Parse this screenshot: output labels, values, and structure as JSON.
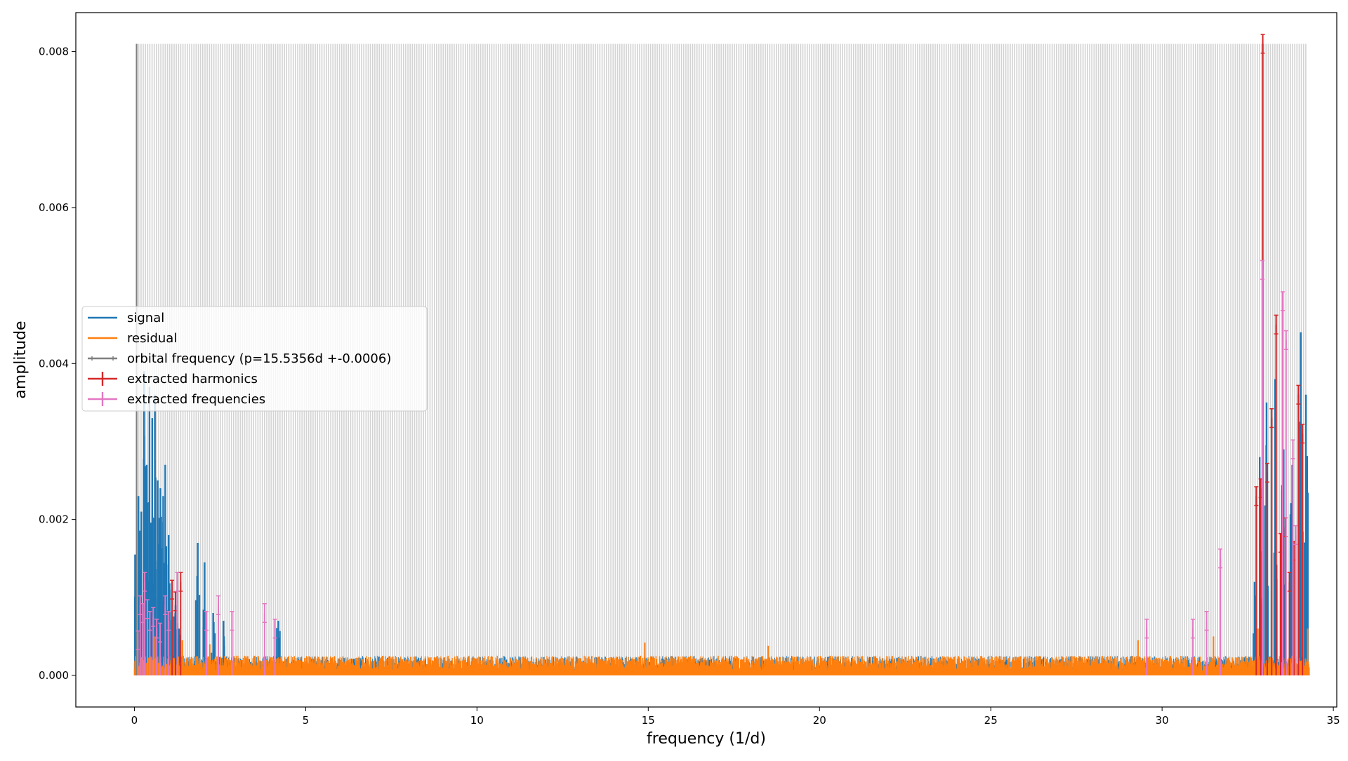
{
  "chart_data": {
    "type": "line",
    "xlabel": "frequency (1/d)",
    "ylabel": "amplitude",
    "xlim": [
      -1.71,
      35.1
    ],
    "ylim": [
      -0.000405,
      0.0085
    ],
    "x_ticks": [
      0,
      5,
      10,
      15,
      20,
      25,
      30,
      35
    ],
    "y_ticks": [
      0.0,
      0.002,
      0.004,
      0.006,
      0.008
    ],
    "x_tick_labels": [
      "0",
      "5",
      "10",
      "15",
      "20",
      "25",
      "30",
      "35"
    ],
    "y_tick_labels": [
      "0.000",
      "0.002",
      "0.004",
      "0.006",
      "0.008"
    ],
    "legend_position": "center-left",
    "grid": false,
    "colors": {
      "signal": "#1f77b4",
      "residual": "#ff7f0e",
      "orbital": "#7f7f7f",
      "harmonics": "#d62728",
      "frequencies": "#e377c2",
      "harmonic_bands": "#d3d3d3"
    },
    "orbital_frequency": {
      "label": "orbital frequency (p=15.5356d +-0.0006)",
      "x": 0.0644,
      "y": 0.0081
    },
    "harmonic_band": {
      "x_start": 0.0644,
      "x_end": 34.2,
      "spacing": 0.0644,
      "height": 0.0081
    },
    "series": [
      {
        "name": "signal",
        "description": "amplitude spectrum of the light curve",
        "peaks": [
          {
            "x": 0.02,
            "y": 0.00155
          },
          {
            "x": 0.12,
            "y": 0.0023
          },
          {
            "x": 0.2,
            "y": 0.0021
          },
          {
            "x": 0.28,
            "y": 0.0039
          },
          {
            "x": 0.36,
            "y": 0.0027
          },
          {
            "x": 0.44,
            "y": 0.0037
          },
          {
            "x": 0.52,
            "y": 0.0033
          },
          {
            "x": 0.6,
            "y": 0.0036
          },
          {
            "x": 0.68,
            "y": 0.0025
          },
          {
            "x": 0.76,
            "y": 0.0024
          },
          {
            "x": 0.84,
            "y": 0.0023
          },
          {
            "x": 0.9,
            "y": 0.0027
          },
          {
            "x": 1.0,
            "y": 0.0018
          },
          {
            "x": 1.1,
            "y": 0.0012
          },
          {
            "x": 1.2,
            "y": 0.0009
          },
          {
            "x": 1.3,
            "y": 0.0006
          },
          {
            "x": 1.85,
            "y": 0.0017
          },
          {
            "x": 2.05,
            "y": 0.00145
          },
          {
            "x": 2.3,
            "y": 0.0008
          },
          {
            "x": 2.6,
            "y": 0.0007
          },
          {
            "x": 4.2,
            "y": 0.0007
          },
          {
            "x": 32.7,
            "y": 0.0012
          },
          {
            "x": 32.85,
            "y": 0.0028
          },
          {
            "x": 33.05,
            "y": 0.0035
          },
          {
            "x": 33.3,
            "y": 0.0038
          },
          {
            "x": 33.55,
            "y": 0.0029
          },
          {
            "x": 33.8,
            "y": 0.0027
          },
          {
            "x": 34.05,
            "y": 0.0044
          },
          {
            "x": 34.2,
            "y": 0.0036
          }
        ]
      },
      {
        "name": "residual",
        "description": "residual spectrum after prewhitening",
        "noise_level": 0.00023,
        "peaks": [
          {
            "x": 0.1,
            "y": 0.00055
          },
          {
            "x": 0.6,
            "y": 0.0005
          },
          {
            "x": 1.4,
            "y": 0.00045
          },
          {
            "x": 2.2,
            "y": 0.0004
          },
          {
            "x": 14.9,
            "y": 0.00042
          },
          {
            "x": 18.5,
            "y": 0.00038
          },
          {
            "x": 29.3,
            "y": 0.00045
          },
          {
            "x": 31.5,
            "y": 0.0005
          },
          {
            "x": 32.8,
            "y": 0.0006
          },
          {
            "x": 34.25,
            "y": 0.0006
          }
        ]
      },
      {
        "name": "extracted harmonics",
        "points": [
          {
            "x": 1.1,
            "y": 0.0011
          },
          {
            "x": 1.2,
            "y": 0.00095
          },
          {
            "x": 1.35,
            "y": 0.0012
          },
          {
            "x": 32.75,
            "y": 0.0023
          },
          {
            "x": 32.88,
            "y": 0.0024
          },
          {
            "x": 32.94,
            "y": 0.0081
          },
          {
            "x": 33.07,
            "y": 0.0026
          },
          {
            "x": 33.2,
            "y": 0.0033
          },
          {
            "x": 33.33,
            "y": 0.0045
          },
          {
            "x": 33.46,
            "y": 0.0017
          },
          {
            "x": 33.6,
            "y": 0.0019
          },
          {
            "x": 33.72,
            "y": 0.0012
          },
          {
            "x": 33.85,
            "y": 0.0016
          },
          {
            "x": 33.98,
            "y": 0.0036
          },
          {
            "x": 34.1,
            "y": 0.0031
          }
        ],
        "error": 0.00012
      },
      {
        "name": "extracted frequencies",
        "points": [
          {
            "x": 0.1,
            "y": 0.00045
          },
          {
            "x": 0.17,
            "y": 0.0009
          },
          {
            "x": 0.25,
            "y": 0.0008
          },
          {
            "x": 0.3,
            "y": 0.0012
          },
          {
            "x": 0.38,
            "y": 0.00085
          },
          {
            "x": 0.45,
            "y": 0.0007
          },
          {
            "x": 0.55,
            "y": 0.00075
          },
          {
            "x": 0.65,
            "y": 0.0006
          },
          {
            "x": 0.75,
            "y": 0.00055
          },
          {
            "x": 0.9,
            "y": 0.0009
          },
          {
            "x": 1.0,
            "y": 0.0007
          },
          {
            "x": 1.25,
            "y": 0.0012
          },
          {
            "x": 2.1,
            "y": 0.0007
          },
          {
            "x": 2.45,
            "y": 0.0009
          },
          {
            "x": 2.85,
            "y": 0.0007
          },
          {
            "x": 3.8,
            "y": 0.0008
          },
          {
            "x": 4.1,
            "y": 0.0006
          },
          {
            "x": 29.55,
            "y": 0.0006
          },
          {
            "x": 30.9,
            "y": 0.0006
          },
          {
            "x": 31.3,
            "y": 0.0007
          },
          {
            "x": 31.7,
            "y": 0.0015
          },
          {
            "x": 32.93,
            "y": 0.0052
          },
          {
            "x": 33.52,
            "y": 0.0048
          },
          {
            "x": 33.62,
            "y": 0.0043
          },
          {
            "x": 33.82,
            "y": 0.0029
          },
          {
            "x": 33.9,
            "y": 0.0018
          }
        ],
        "error": 0.00012
      }
    ]
  },
  "legend": {
    "items": [
      {
        "label": "signal",
        "color": "#1f77b4",
        "marker": "line"
      },
      {
        "label": "residual",
        "color": "#ff7f0e",
        "marker": "line"
      },
      {
        "label": "orbital frequency (p=15.5356d +-0.0006)",
        "color": "#7f7f7f",
        "marker": "errorbar-small"
      },
      {
        "label": "extracted harmonics",
        "color": "#d62728",
        "marker": "errorbar"
      },
      {
        "label": "extracted frequencies",
        "color": "#e377c2",
        "marker": "errorbar"
      }
    ]
  }
}
